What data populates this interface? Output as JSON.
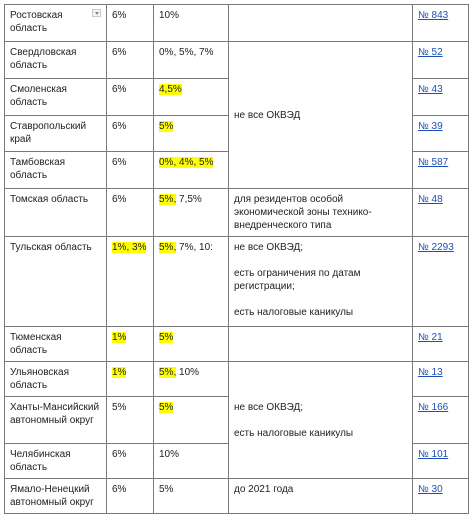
{
  "rows": [
    {
      "region": "Ростовская область",
      "rate_a": "6%",
      "rate_b": "10%",
      "law": "№ 843"
    },
    {
      "region": "Свердловская область",
      "rate_a": "6%",
      "rate_b": "0%, 5%, 7%",
      "law": "№ 52"
    },
    {
      "region": "Смоленская область",
      "rate_a": "6%",
      "rate_b": "4,5%",
      "law": "№ 43"
    },
    {
      "region": "Ставропольский край",
      "rate_a": "6%",
      "rate_b": "5%",
      "law": "№ 39"
    },
    {
      "region": "Тамбовская область",
      "rate_a": "6%",
      "rate_b": "0%, 4%, 5%",
      "law": "№ 587"
    },
    {
      "region": "Томская область",
      "rate_a": "6%",
      "rate_b_hl": "5%,",
      "rate_b_rest": " 7,5%",
      "law": "№ 48"
    },
    {
      "region": "Тульская область",
      "rate_a": "1%, 3%",
      "rate_b_hl": "5%,",
      "rate_b_rest": " 7%, 10:",
      "law": "№ 2293"
    },
    {
      "region": "Тюменская область",
      "rate_a": "1%",
      "rate_b": "5%",
      "law": "№ 21"
    },
    {
      "region": "Ульяновская область",
      "rate_a": "1%",
      "rate_b_hl": "5%,",
      "rate_b_rest": " 10%",
      "law": "№ 13"
    },
    {
      "region": "Ханты-Мансийский автономный округ",
      "rate_a": "5%",
      "rate_b": "5%",
      "law": "№ 166"
    },
    {
      "region": "Челябинская область",
      "rate_a": "6%",
      "rate_b": "10%",
      "law": "№ 101"
    },
    {
      "region": "Ямало-Ненецкий автономный округ",
      "rate_a": "6%",
      "rate_b": "5%",
      "law": "№ 30"
    }
  ],
  "notes": {
    "group1": "не все ОКВЭД",
    "tomsk": "для резидентов особой экономической зоны технико-внедренческого типа",
    "tula_1": "не все ОКВЭД;",
    "tula_2": "есть ограничения по датам регистрации;",
    "tula_3": "есть налоговые каникулы",
    "group2_1": "не все ОКВЭД;",
    "group2_2": "есть налоговые каникулы",
    "yamal": "до 2021 года"
  },
  "colors": {
    "highlight": "#ffff00",
    "link": "#1c4fb8",
    "border": "#7a7a7a"
  }
}
